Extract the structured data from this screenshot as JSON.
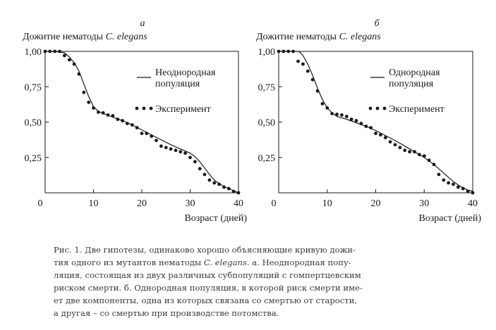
{
  "chart_data": [
    {
      "type": "line",
      "panel_letter": "а",
      "title": "Дожитие нематоды C. elegans",
      "xlabel": "Возраст (дней)",
      "ylabel": "",
      "xlim": [
        0,
        40
      ],
      "ylim": [
        0,
        1
      ],
      "x_ticks": [
        0,
        10,
        20,
        30,
        40
      ],
      "y_ticks": [
        0.25,
        0.5,
        0.75,
        1.0
      ],
      "y_tick_labels": [
        "0,25",
        "0,50",
        "0,75",
        "1,00"
      ],
      "grid": false,
      "legend_position": "upper-right",
      "series": [
        {
          "name": "Неоднородная популяция",
          "kind": "line",
          "color": "#1a1a1a",
          "x": [
            0,
            2,
            4,
            5,
            6,
            7,
            8,
            9,
            10,
            11,
            12,
            14,
            16,
            18,
            20,
            22,
            24,
            26,
            28,
            30,
            31,
            32,
            33,
            34,
            35,
            36,
            37,
            38,
            39,
            40
          ],
          "y": [
            1.0,
            1.0,
            0.99,
            0.96,
            0.92,
            0.86,
            0.77,
            0.68,
            0.61,
            0.575,
            0.56,
            0.535,
            0.51,
            0.48,
            0.445,
            0.41,
            0.375,
            0.34,
            0.31,
            0.28,
            0.255,
            0.22,
            0.175,
            0.13,
            0.09,
            0.065,
            0.045,
            0.03,
            0.015,
            0.0
          ]
        },
        {
          "name": "Эксперимент",
          "kind": "points",
          "color": "#1a1a1a",
          "x": [
            0,
            1,
            2,
            3,
            4,
            5,
            6,
            7,
            8,
            9,
            10,
            11,
            12,
            13,
            14,
            15,
            16,
            17,
            18,
            19,
            20,
            21,
            22,
            23,
            24,
            25,
            26,
            27,
            28,
            29,
            30,
            31,
            32,
            33,
            34,
            35,
            36,
            37,
            38,
            39,
            40
          ],
          "y": [
            1.0,
            1.0,
            1.0,
            1.0,
            0.97,
            0.94,
            0.91,
            0.84,
            0.71,
            0.64,
            0.6,
            0.57,
            0.565,
            0.55,
            0.545,
            0.52,
            0.51,
            0.49,
            0.48,
            0.46,
            0.42,
            0.42,
            0.4,
            0.37,
            0.33,
            0.32,
            0.31,
            0.3,
            0.29,
            0.28,
            0.25,
            0.22,
            0.17,
            0.13,
            0.09,
            0.07,
            0.06,
            0.04,
            0.03,
            0.01,
            0.0
          ]
        }
      ]
    },
    {
      "type": "line",
      "panel_letter": "б",
      "title": "Дожитие нематоды C. elegans",
      "xlabel": "Возраст (дней)",
      "ylabel": "",
      "xlim": [
        0,
        40
      ],
      "ylim": [
        0,
        1
      ],
      "x_ticks": [
        0,
        10,
        20,
        30,
        40
      ],
      "y_ticks": [
        0.25,
        0.5,
        0.75,
        1.0
      ],
      "y_tick_labels": [
        "0,25",
        "0,50",
        "0,75",
        "1,00"
      ],
      "grid": false,
      "legend_position": "upper-right",
      "series": [
        {
          "name": "Однородная популяция",
          "kind": "line",
          "color": "#1a1a1a",
          "x": [
            0,
            2,
            4,
            4.5,
            5,
            6,
            7,
            8,
            9,
            10,
            11,
            12,
            14,
            16,
            18,
            20,
            22,
            24,
            26,
            28,
            30,
            32,
            34,
            35,
            36,
            37,
            38,
            39,
            40
          ],
          "y": [
            1.0,
            1.0,
            1.0,
            0.99,
            0.97,
            0.91,
            0.83,
            0.74,
            0.66,
            0.6,
            0.565,
            0.54,
            0.52,
            0.495,
            0.47,
            0.44,
            0.405,
            0.37,
            0.33,
            0.29,
            0.25,
            0.2,
            0.14,
            0.11,
            0.08,
            0.055,
            0.035,
            0.02,
            0.01
          ]
        },
        {
          "name": "Эксперимент",
          "kind": "points",
          "color": "#1a1a1a",
          "x": [
            0,
            1,
            2,
            3,
            4,
            5,
            6,
            7,
            8,
            9,
            10,
            11,
            12,
            13,
            14,
            15,
            16,
            17,
            18,
            19,
            20,
            21,
            22,
            23,
            24,
            25,
            26,
            27,
            28,
            29,
            30,
            31,
            32,
            33,
            34,
            35,
            36,
            37,
            38,
            39,
            40
          ],
          "y": [
            1.0,
            1.0,
            1.0,
            1.0,
            0.93,
            0.91,
            0.86,
            0.8,
            0.72,
            0.63,
            0.6,
            0.56,
            0.555,
            0.55,
            0.54,
            0.52,
            0.51,
            0.49,
            0.47,
            0.46,
            0.42,
            0.41,
            0.39,
            0.36,
            0.34,
            0.32,
            0.3,
            0.29,
            0.29,
            0.27,
            0.26,
            0.23,
            0.2,
            0.13,
            0.09,
            0.07,
            0.06,
            0.04,
            0.03,
            0.01,
            0.0
          ]
        }
      ]
    }
  ],
  "caption": {
    "lines": [
      "Рис. 1. Две гипотезы, одинаково хорошо объясняющие кривую дожи-",
      "тия одного из мутантов нематоды C. elegans. а. Неоднородная попу-",
      "ляция, состоящая из двух различных субпопуляций с гомпертцевским",
      "риском смерти. б. Однородная популяция, в которой риск смерти име-",
      "ет две компоненты, одна из которых связана со смертью от старости,",
      "а другая – со смертью при производстве потомства."
    ]
  }
}
